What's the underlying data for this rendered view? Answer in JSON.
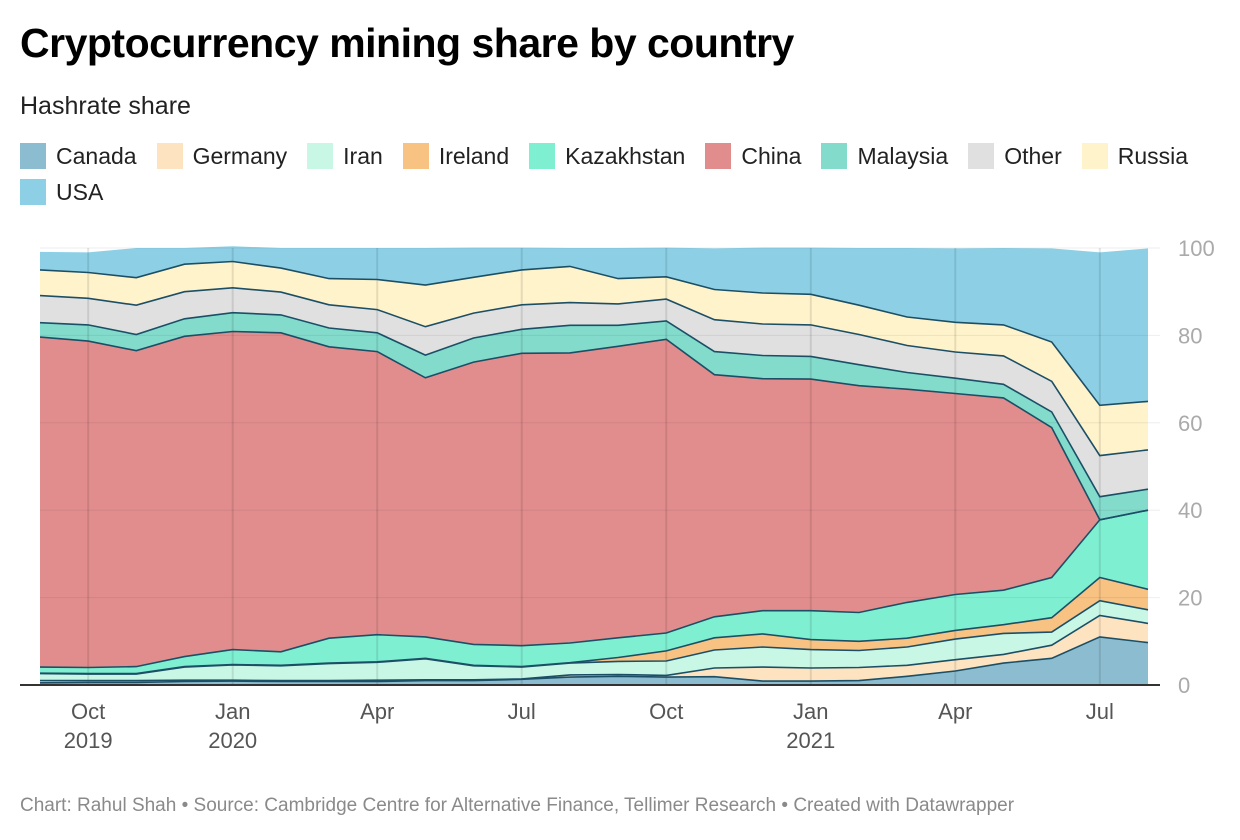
{
  "title": "Cryptocurrency mining share by country",
  "subtitle": "Hashrate share",
  "footer": "Chart: Rahul Shah • Source: Cambridge Centre for Alternative Finance, Tellimer Research • Created with Datawrapper",
  "chart_data": {
    "type": "area",
    "stacked": true,
    "x": [
      "2019-09",
      "2019-10",
      "2019-11",
      "2019-12",
      "2020-01",
      "2020-02",
      "2020-03",
      "2020-04",
      "2020-05",
      "2020-06",
      "2020-07",
      "2020-08",
      "2020-09",
      "2020-10",
      "2020-11",
      "2020-12",
      "2021-01",
      "2021-02",
      "2021-03",
      "2021-04",
      "2021-05",
      "2021-06",
      "2021-07",
      "2021-08"
    ],
    "x_ticks": [
      {
        "x": "2019-10",
        "label": "Oct",
        "year": "2019"
      },
      {
        "x": "2020-01",
        "label": "Jan",
        "year": "2020"
      },
      {
        "x": "2020-04",
        "label": "Apr",
        "year": ""
      },
      {
        "x": "2020-07",
        "label": "Jul",
        "year": ""
      },
      {
        "x": "2020-10",
        "label": "Oct",
        "year": ""
      },
      {
        "x": "2021-01",
        "label": "Jan",
        "year": "2021"
      },
      {
        "x": "2021-04",
        "label": "Apr",
        "year": ""
      },
      {
        "x": "2021-07",
        "label": "Jul",
        "year": ""
      }
    ],
    "ylim": [
      0,
      100
    ],
    "y_ticks": [
      0,
      20,
      40,
      60,
      80,
      100
    ],
    "grid": true,
    "legend_position": "top",
    "series": [
      {
        "name": "Canada",
        "color": "#8cbcd0",
        "values": [
          0.5,
          0.6,
          0.6,
          0.8,
          0.9,
          0.8,
          0.8,
          0.8,
          1.0,
          1.0,
          1.3,
          1.8,
          2.0,
          1.8,
          1.9,
          0.9,
          0.9,
          1.0,
          2.0,
          3.2,
          5.0,
          6.1,
          11.0,
          9.7
        ]
      },
      {
        "name": "Germany",
        "color": "#fde3c0",
        "values": [
          0.5,
          0.4,
          0.4,
          0.3,
          0.2,
          0.2,
          0.2,
          0.3,
          0.2,
          0.2,
          0.1,
          0.5,
          0.4,
          0.4,
          2.0,
          3.2,
          3.0,
          3.0,
          2.5,
          2.6,
          2.0,
          3.0,
          4.9,
          4.4
        ]
      },
      {
        "name": "Iran",
        "color": "#c9f7e6",
        "values": [
          1.6,
          1.5,
          1.5,
          3.0,
          3.5,
          3.4,
          3.9,
          4.1,
          4.8,
          3.2,
          2.7,
          2.7,
          3.0,
          3.3,
          4.1,
          4.6,
          4.2,
          3.9,
          4.2,
          4.7,
          4.8,
          3.0,
          3.4,
          3.1
        ]
      },
      {
        "name": "Ireland",
        "color": "#f8c283",
        "values": [
          0.1,
          0.1,
          0.1,
          0.1,
          0.1,
          0.1,
          0.1,
          0.1,
          0.1,
          0.1,
          0.1,
          0.1,
          0.9,
          2.3,
          2.8,
          3.0,
          2.3,
          2.1,
          2.0,
          2.0,
          2.0,
          3.3,
          5.3,
          4.7
        ]
      },
      {
        "name": "Kazakhstan",
        "color": "#7fefd2",
        "values": [
          1.4,
          1.4,
          1.6,
          2.3,
          3.4,
          3.1,
          5.7,
          6.2,
          4.9,
          4.8,
          4.8,
          4.5,
          4.5,
          4.1,
          4.8,
          5.3,
          6.6,
          6.6,
          8.2,
          8.2,
          7.9,
          9.2,
          13.2,
          18.1
        ]
      },
      {
        "name": "China",
        "color": "#e18d8d",
        "values": [
          75.5,
          74.7,
          72.3,
          73.3,
          72.8,
          73.0,
          66.7,
          64.8,
          59.3,
          64.6,
          66.9,
          66.4,
          66.7,
          67.2,
          55.4,
          53.1,
          53.0,
          51.9,
          48.8,
          46.0,
          44.0,
          34.3,
          0.0,
          0.0
        ]
      },
      {
        "name": "Malaysia",
        "color": "#83dbcc",
        "values": [
          3.3,
          3.7,
          3.7,
          4.0,
          4.3,
          4.1,
          4.3,
          4.3,
          5.2,
          5.5,
          5.5,
          6.3,
          4.8,
          4.2,
          5.3,
          5.3,
          5.2,
          4.8,
          3.8,
          3.5,
          3.1,
          3.6,
          5.3,
          4.8
        ]
      },
      {
        "name": "Other",
        "color": "#e0e0e0",
        "values": [
          6.2,
          6.1,
          6.7,
          6.2,
          5.7,
          5.2,
          5.3,
          5.3,
          6.5,
          5.7,
          5.6,
          5.2,
          4.9,
          5.0,
          7.3,
          7.2,
          7.2,
          6.9,
          6.2,
          6.0,
          6.5,
          7.0,
          9.4,
          9.0
        ]
      },
      {
        "name": "Russia",
        "color": "#fff3cb",
        "values": [
          5.9,
          5.9,
          6.3,
          6.3,
          6.0,
          5.5,
          6.0,
          6.9,
          9.5,
          8.2,
          8.0,
          8.3,
          5.8,
          5.1,
          6.9,
          7.1,
          7.0,
          6.7,
          6.5,
          6.8,
          7.1,
          9.0,
          11.5,
          11.1
        ]
      },
      {
        "name": "USA",
        "color": "#8dd0e6",
        "values": [
          4.1,
          4.6,
          6.8,
          3.7,
          3.5,
          4.6,
          7.0,
          7.2,
          8.5,
          6.8,
          5.1,
          4.2,
          7.0,
          6.7,
          9.4,
          10.4,
          10.7,
          13.1,
          15.8,
          16.9,
          17.6,
          21.4,
          35.0,
          35.0
        ]
      }
    ]
  }
}
